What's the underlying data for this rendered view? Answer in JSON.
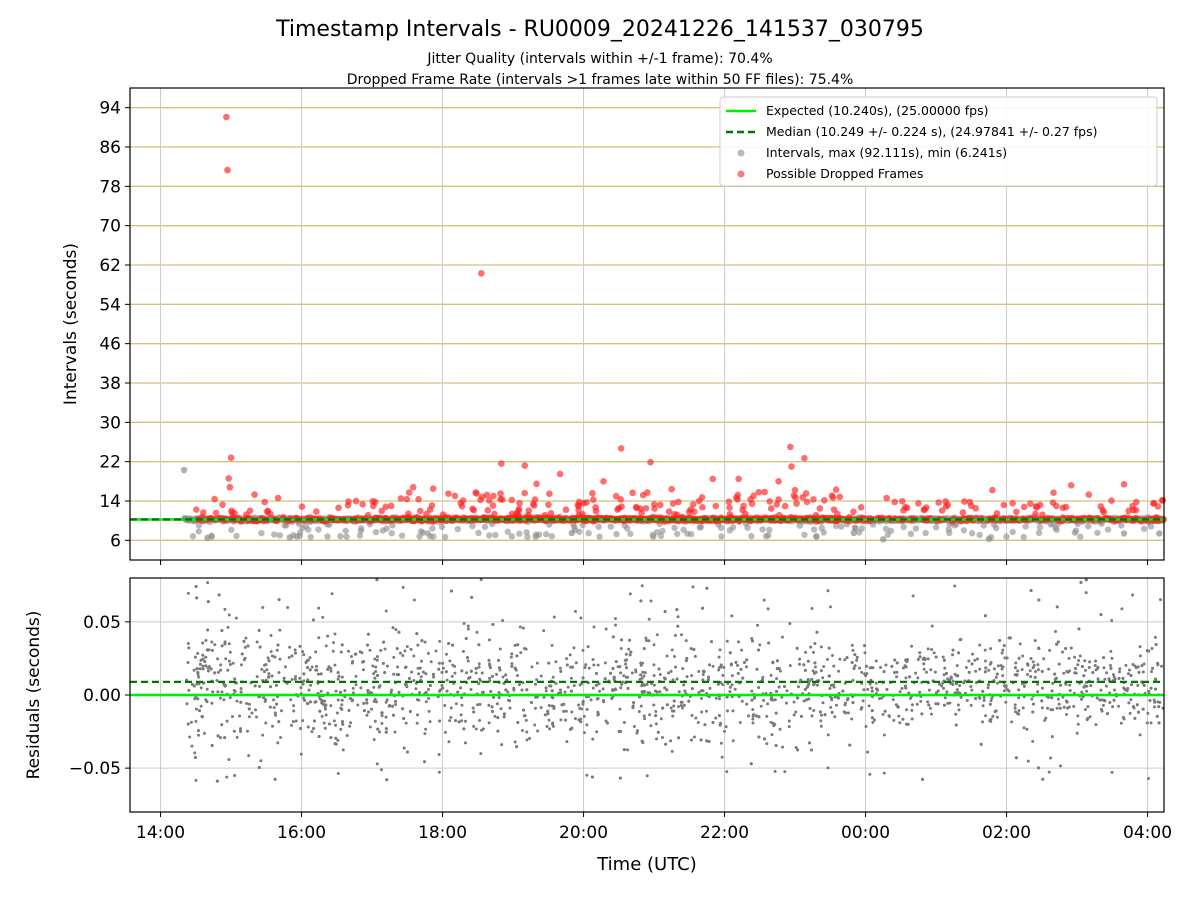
{
  "figure": {
    "title": "Timestamp Intervals - RU0009_20241226_141537_030795",
    "subtitle_1": "Jitter Quality (intervals within +/-1 frame): 70.4%",
    "subtitle_2": "Dropped Frame Rate (intervals >1 frames late within 50 FF files): 75.4%",
    "xlabel": "Time (UTC)"
  },
  "colors": {
    "expected": "#00ee00",
    "median": "#007700",
    "intervals": "#8c8c8c",
    "dropped": "#ff2020",
    "grid_top": "#d4c27a",
    "grid_bottom": "#cccccc"
  },
  "chart_data": [
    {
      "type": "scatter",
      "ylabel": "Intervals (seconds)",
      "x_axis_type": "time_utc",
      "x_ticks": [
        "14:00",
        "16:00",
        "18:00",
        "20:00",
        "22:00",
        "00:00",
        "02:00",
        "04:00"
      ],
      "xlim": [
        "2024-12-26 13:34",
        "2024-12-27 04:14"
      ],
      "ylim": [
        2.0,
        98.0
      ],
      "y_ticks": [
        6,
        14,
        22,
        30,
        38,
        46,
        54,
        62,
        70,
        78,
        86,
        94
      ],
      "grid": "y",
      "legend_position": "top-right",
      "legend": {
        "expected": "Expected (10.240s), (25.00000 fps)",
        "median": "Median (10.249 +/- 0.224 s), (24.97841 +/- 0.27 fps)",
        "intervals": "Intervals, max (92.111s), min (6.241s)",
        "dropped": "Possible Dropped Frames"
      },
      "lines": {
        "expected": 10.24,
        "median": 10.249
      },
      "series": [
        {
          "name": "Intervals, max (92.111s), min (6.241s)",
          "band": {
            "start": "14:20",
            "end": "04:14",
            "center": 10.24,
            "spread": 0.5
          },
          "points": [
            {
              "x": "14:20",
              "y": 20.3
            },
            {
              "x": "14:40",
              "y": 6.5
            },
            {
              "x": "15:50",
              "y": 6.6
            },
            {
              "x": "19:50",
              "y": 7.5
            },
            {
              "x": "23:50",
              "y": 7.5
            },
            {
              "x": "00:15",
              "y": 6.2
            },
            {
              "x": "01:45",
              "y": 6.3
            },
            {
              "x": "03:40",
              "y": 7.4
            },
            {
              "x": "04:10",
              "y": 7.4
            }
          ]
        },
        {
          "name": "Possible Dropped Frames",
          "band": {
            "start": "14:30",
            "end": "04:14",
            "center": 10.3,
            "spread": 0.6
          },
          "points": [
            {
              "x": "14:56",
              "y": 92.1
            },
            {
              "x": "14:57",
              "y": 81.3
            },
            {
              "x": "18:33",
              "y": 60.3
            },
            {
              "x": "15:00",
              "y": 22.8
            },
            {
              "x": "14:58",
              "y": 18.6
            },
            {
              "x": "14:59",
              "y": 16.8
            },
            {
              "x": "20:32",
              "y": 24.7
            },
            {
              "x": "22:56",
              "y": 25.0
            },
            {
              "x": "23:08",
              "y": 22.7
            },
            {
              "x": "22:57",
              "y": 21.0
            },
            {
              "x": "18:50",
              "y": 21.6
            },
            {
              "x": "19:10",
              "y": 21.2
            },
            {
              "x": "20:57",
              "y": 21.9
            },
            {
              "x": "19:40",
              "y": 19.5
            },
            {
              "x": "19:20",
              "y": 17.5
            },
            {
              "x": "20:17",
              "y": 18.0
            },
            {
              "x": "21:50",
              "y": 18.5
            },
            {
              "x": "22:12",
              "y": 18.5
            },
            {
              "x": "22:46",
              "y": 18.0
            },
            {
              "x": "17:35",
              "y": 16.8
            },
            {
              "x": "17:52",
              "y": 16.5
            },
            {
              "x": "18:05",
              "y": 15.5
            },
            {
              "x": "21:15",
              "y": 16.4
            },
            {
              "x": "23:00",
              "y": 16.2
            },
            {
              "x": "23:35",
              "y": 16.3
            },
            {
              "x": "01:48",
              "y": 16.2
            },
            {
              "x": "02:55",
              "y": 17.2
            },
            {
              "x": "03:40",
              "y": 17.4
            },
            {
              "x": "02:40",
              "y": 15.7
            },
            {
              "x": "03:10",
              "y": 15.3
            },
            {
              "x": "04:05",
              "y": 13.5
            },
            {
              "x": "04:13",
              "y": 14.2
            },
            {
              "x": "14:46",
              "y": 14.4
            },
            {
              "x": "15:20",
              "y": 15.3
            },
            {
              "x": "15:40",
              "y": 14.6
            },
            {
              "x": "16:40",
              "y": 13.9
            },
            {
              "x": "00:18",
              "y": 14.6
            },
            {
              "x": "00:45",
              "y": 13.5
            },
            {
              "x": "01:10",
              "y": 13.2
            },
            {
              "x": "01:30",
              "y": 13.0
            },
            {
              "x": "02:15",
              "y": 12.8
            },
            {
              "x": "02:25",
              "y": 12.9
            }
          ]
        }
      ]
    },
    {
      "type": "scatter",
      "ylabel": "Residuals (seconds)",
      "x_axis_type": "time_utc",
      "x_ticks": [
        "14:00",
        "16:00",
        "18:00",
        "20:00",
        "22:00",
        "00:00",
        "02:00",
        "04:00"
      ],
      "xlim": [
        "2024-12-26 13:34",
        "2024-12-27 04:14"
      ],
      "ylim": [
        -0.08,
        0.08
      ],
      "y_ticks": [
        "−0.05",
        "0.00",
        "0.05"
      ],
      "y_tick_values": [
        -0.05,
        0.0,
        0.05
      ],
      "grid": "both",
      "lines": {
        "expected": 0.0,
        "median": 0.009
      },
      "series": [
        {
          "name": "Residuals",
          "band": {
            "start": "14:20",
            "end": "04:14",
            "center": 0.009,
            "spread": 0.035
          }
        }
      ]
    }
  ]
}
